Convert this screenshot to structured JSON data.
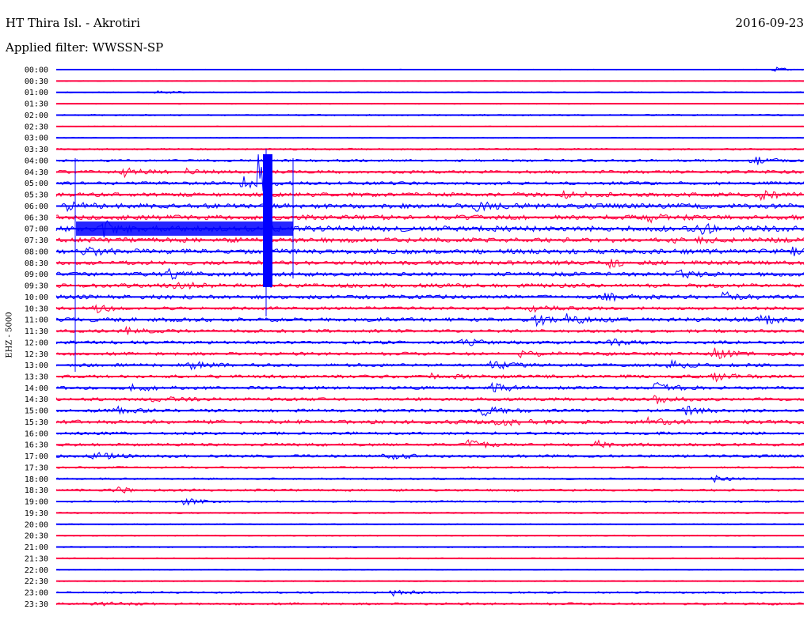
{
  "header": {
    "station": "HT Thira Isl. - Akrotiri",
    "date": "2016-09-23",
    "filter": "Applied filter: WWSSN-SP",
    "channel": "EHZ - 5000"
  },
  "colors": {
    "even": "#0000ff",
    "odd": "#ff0040"
  },
  "chart_data": {
    "type": "line",
    "title": "HT Thira Isl. - Akrotiri",
    "subtitle": "Applied filter: WWSSN-SP",
    "ylabel": "EHZ - 5000",
    "tick_labels": [
      "00:00",
      "00:30",
      "01:00",
      "01:30",
      "02:00",
      "02:30",
      "03:00",
      "03:30",
      "04:00",
      "04:30",
      "05:00",
      "05:30",
      "06:00",
      "06:30",
      "07:00",
      "07:30",
      "08:00",
      "08:30",
      "09:00",
      "09:30",
      "10:00",
      "10:30",
      "11:00",
      "11:30",
      "12:00",
      "12:30",
      "13:00",
      "13:30",
      "14:00",
      "14:30",
      "15:00",
      "15:30",
      "16:00",
      "16:30",
      "17:00",
      "17:30",
      "18:00",
      "18:30",
      "19:00",
      "19:30",
      "20:00",
      "20:30",
      "21:00",
      "21:30",
      "22:00",
      "22:30",
      "23:00",
      "23:30"
    ],
    "series": [
      {
        "trace": "00:00",
        "noise": 0.6,
        "events": [
          [
            0.96,
            3
          ]
        ]
      },
      {
        "trace": "00:30",
        "noise": 0.6,
        "events": []
      },
      {
        "trace": "01:00",
        "noise": 0.8,
        "events": [
          [
            0.13,
            3
          ]
        ]
      },
      {
        "trace": "01:30",
        "noise": 0.6,
        "events": []
      },
      {
        "trace": "02:00",
        "noise": 1.0,
        "events": []
      },
      {
        "trace": "02:30",
        "noise": 0.6,
        "events": []
      },
      {
        "trace": "03:00",
        "noise": 0.6,
        "events": [],
        "gap": [
          0.67,
          0.74
        ]
      },
      {
        "trace": "03:30",
        "noise": 1.2,
        "events": []
      },
      {
        "trace": "04:00",
        "noise": 1.5,
        "events": [
          [
            0.93,
            6
          ]
        ]
      },
      {
        "trace": "04:30",
        "noise": 2.0,
        "events": [
          [
            0.09,
            5
          ],
          [
            0.17,
            4
          ]
        ]
      },
      {
        "trace": "05:00",
        "noise": 2.0,
        "events": [
          [
            0.25,
            8
          ],
          [
            0.27,
            90
          ]
        ]
      },
      {
        "trace": "05:30",
        "noise": 2.5,
        "events": [
          [
            0.67,
            5
          ],
          [
            0.94,
            6
          ]
        ]
      },
      {
        "trace": "06:00",
        "noise": 3.0,
        "events": [
          [
            0.01,
            5
          ],
          [
            0.56,
            5
          ]
        ]
      },
      {
        "trace": "06:30",
        "noise": 3.0,
        "events": [
          [
            0.79,
            5
          ]
        ]
      },
      {
        "trace": "07:00",
        "noise": 3.5,
        "events": [
          [
            0.06,
            10
          ],
          [
            0.86,
            6
          ]
        ]
      },
      {
        "trace": "07:30",
        "noise": 3.0,
        "events": [
          [
            0.83,
            5
          ]
        ]
      },
      {
        "trace": "08:00",
        "noise": 3.0,
        "events": [
          [
            0.04,
            6
          ],
          [
            0.98,
            7
          ]
        ]
      },
      {
        "trace": "08:30",
        "noise": 2.5,
        "events": [
          [
            0.74,
            5
          ]
        ]
      },
      {
        "trace": "09:00",
        "noise": 2.5,
        "events": [
          [
            0.15,
            5
          ],
          [
            0.83,
            5
          ]
        ]
      },
      {
        "trace": "09:30",
        "noise": 2.5,
        "events": [
          [
            0.16,
            5
          ]
        ]
      },
      {
        "trace": "10:00",
        "noise": 2.5,
        "events": [
          [
            0.73,
            6
          ],
          [
            0.89,
            6
          ]
        ]
      },
      {
        "trace": "10:30",
        "noise": 2.0,
        "events": [
          [
            0.05,
            5
          ],
          [
            0.63,
            5
          ]
        ]
      },
      {
        "trace": "11:00",
        "noise": 2.5,
        "events": [
          [
            0.64,
            7
          ],
          [
            0.68,
            6
          ],
          [
            0.94,
            6
          ]
        ]
      },
      {
        "trace": "11:30",
        "noise": 2.0,
        "events": [
          [
            0.09,
            4
          ]
        ]
      },
      {
        "trace": "12:00",
        "noise": 2.0,
        "events": [
          [
            0.54,
            5
          ],
          [
            0.74,
            5
          ]
        ]
      },
      {
        "trace": "12:30",
        "noise": 2.0,
        "events": [
          [
            0.62,
            4
          ],
          [
            0.88,
            6
          ]
        ]
      },
      {
        "trace": "13:00",
        "noise": 2.0,
        "events": [
          [
            0.18,
            4
          ],
          [
            0.58,
            6
          ],
          [
            0.82,
            5
          ]
        ]
      },
      {
        "trace": "13:30",
        "noise": 2.0,
        "events": [
          [
            0.5,
            5
          ],
          [
            0.88,
            5
          ]
        ]
      },
      {
        "trace": "14:00",
        "noise": 2.0,
        "events": [
          [
            0.1,
            5
          ],
          [
            0.58,
            7
          ],
          [
            0.8,
            6
          ]
        ]
      },
      {
        "trace": "14:30",
        "noise": 2.0,
        "events": [
          [
            0.13,
            4
          ],
          [
            0.8,
            5
          ]
        ]
      },
      {
        "trace": "15:00",
        "noise": 2.0,
        "events": [
          [
            0.08,
            4
          ],
          [
            0.57,
            6
          ],
          [
            0.84,
            6
          ]
        ]
      },
      {
        "trace": "15:30",
        "noise": 2.5,
        "events": [
          [
            0.59,
            5
          ],
          [
            0.79,
            5
          ]
        ]
      },
      {
        "trace": "16:00",
        "noise": 1.8,
        "events": []
      },
      {
        "trace": "16:30",
        "noise": 1.8,
        "events": [
          [
            0.55,
            6
          ],
          [
            0.72,
            5
          ]
        ]
      },
      {
        "trace": "17:00",
        "noise": 1.8,
        "events": [
          [
            0.05,
            6
          ],
          [
            0.44,
            6
          ]
        ]
      },
      {
        "trace": "17:30",
        "noise": 1.2,
        "events": []
      },
      {
        "trace": "18:00",
        "noise": 1.2,
        "events": [
          [
            0.88,
            5
          ]
        ]
      },
      {
        "trace": "18:30",
        "noise": 1.5,
        "events": [
          [
            0.08,
            4
          ]
        ]
      },
      {
        "trace": "19:00",
        "noise": 1.2,
        "events": [
          [
            0.17,
            4
          ]
        ]
      },
      {
        "trace": "19:30",
        "noise": 1.0,
        "events": []
      },
      {
        "trace": "20:00",
        "noise": 0.8,
        "events": []
      },
      {
        "trace": "20:30",
        "noise": 0.8,
        "events": []
      },
      {
        "trace": "21:00",
        "noise": 0.9,
        "events": []
      },
      {
        "trace": "21:30",
        "noise": 0.8,
        "events": []
      },
      {
        "trace": "22:00",
        "noise": 0.6,
        "events": []
      },
      {
        "trace": "22:30",
        "noise": 0.8,
        "events": []
      },
      {
        "trace": "23:00",
        "noise": 1.2,
        "events": [
          [
            0.45,
            4
          ]
        ]
      },
      {
        "trace": "23:30",
        "noise": 1.5,
        "events": [
          [
            0.05,
            4
          ]
        ]
      }
    ],
    "grid": false,
    "legend": "none"
  }
}
